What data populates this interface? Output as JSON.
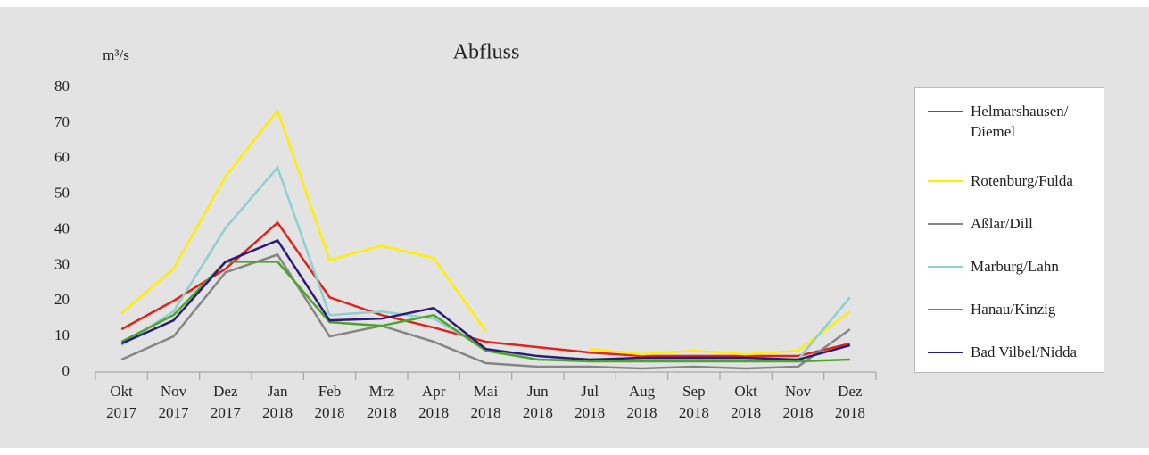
{
  "chart_data": {
    "type": "line",
    "title": "Abfluss",
    "y_axis_label": "m³/s",
    "categories": [
      "Okt 2017",
      "Nov 2017",
      "Dez 2017",
      "Jan 2018",
      "Feb 2018",
      "Mrz 2018",
      "Apr 2018",
      "Mai 2018",
      "Jun 2018",
      "Jul 2018",
      "Aug 2018",
      "Sep 2018",
      "Okt 2018",
      "Nov 2018",
      "Dez 2018"
    ],
    "series": [
      {
        "name": "Helmarshausen/ Diemel",
        "color": "#e0231c",
        "values": [
          12,
          20,
          29,
          42,
          21,
          16,
          12.5,
          8.5,
          7,
          5.5,
          4.5,
          4.5,
          4.5,
          4.5,
          8
        ]
      },
      {
        "name": "Rotenburg/Fulda",
        "color": "#fff000",
        "values": [
          16.5,
          29,
          55,
          73.5,
          31.5,
          35.5,
          32,
          11.5,
          null,
          6.5,
          5,
          6,
          5,
          6,
          17
        ]
      },
      {
        "name": "Aßlar/Dill",
        "color": "#858585",
        "values": [
          3.5,
          10,
          28,
          33,
          10,
          13,
          8.5,
          2.5,
          1.5,
          1.5,
          1,
          1.5,
          1,
          1.5,
          12
        ]
      },
      {
        "name": "Marburg/Lahn",
        "color": "#8fcfcf",
        "values": [
          7.5,
          17,
          40.5,
          57.5,
          16,
          17,
          15,
          6.5,
          3.5,
          3.5,
          3.5,
          3.5,
          3.5,
          3.5,
          21
        ]
      },
      {
        "name": "Hanau/Kinzig",
        "color": "#4ba528",
        "values": [
          8.5,
          16,
          31,
          31,
          14,
          13,
          16,
          6,
          3.5,
          3,
          3,
          3,
          3,
          3,
          3.5
        ]
      },
      {
        "name": "Bad Vilbel/Nidda",
        "color": "#2e1a7a",
        "values": [
          8,
          14.5,
          31,
          37,
          14.5,
          15,
          18,
          6.5,
          4.5,
          3.5,
          4,
          4,
          4,
          3.5,
          7.5
        ]
      }
    ],
    "ylim": [
      0,
      80
    ],
    "yticks": [
      0,
      10,
      20,
      30,
      40,
      50,
      60,
      70,
      80
    ],
    "grid": false
  }
}
